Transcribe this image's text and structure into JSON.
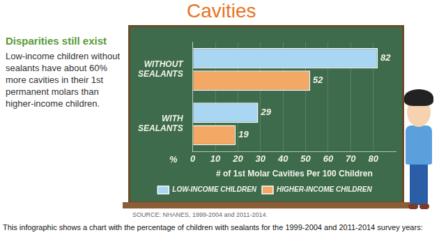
{
  "chart_data": {
    "type": "bar",
    "title": "Cavities",
    "orientation": "horizontal",
    "categories": [
      "WITHOUT SEALANTS",
      "WITH SEALANTS"
    ],
    "series": [
      {
        "name": "LOW-INCOME CHILDREN",
        "color": "#a9d6f2",
        "values": [
          82,
          29
        ]
      },
      {
        "name": "HIGHER-INCOME CHILDREN",
        "color": "#f4a866",
        "values": [
          52,
          19
        ]
      }
    ],
    "x_label": "# of 1st Molar Cavities Per 100 Children",
    "x_unit_label": "%",
    "xlim": [
      0,
      90
    ],
    "xticks": [
      0,
      10,
      20,
      30,
      40,
      50,
      60,
      70,
      80
    ],
    "grid": true,
    "legend": "bottom",
    "data_labels": true
  },
  "sidebar": {
    "heading": "Disparities still exist",
    "text": "Low-income children without sealants have about 60% more cavities in their 1st permanent molars than higher-income children."
  },
  "source": "SOURCE: NHANES, 1999-2004 and 2011-2014.",
  "caption": "This infographic shows a chart with the percentage of children with sealants for the 1999-2004 and 2011-2014 survey years:"
}
